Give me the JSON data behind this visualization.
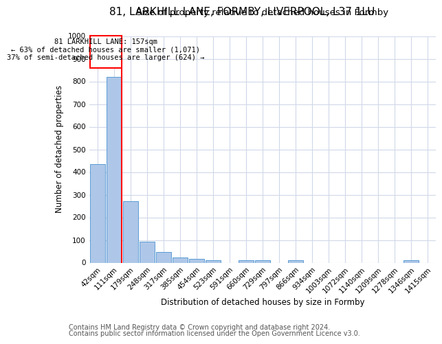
{
  "title1": "81, LARKHILL LANE, FORMBY, LIVERPOOL, L37 1LU",
  "title2": "Size of property relative to detached houses in Formby",
  "xlabel": "Distribution of detached houses by size in Formby",
  "ylabel": "Number of detached properties",
  "bin_labels": [
    "42sqm",
    "111sqm",
    "179sqm",
    "248sqm",
    "317sqm",
    "385sqm",
    "454sqm",
    "523sqm",
    "591sqm",
    "660sqm",
    "729sqm",
    "797sqm",
    "866sqm",
    "934sqm",
    "1003sqm",
    "1072sqm",
    "1140sqm",
    "1209sqm",
    "1278sqm",
    "1346sqm",
    "1415sqm"
  ],
  "bar_heights": [
    435,
    820,
    270,
    93,
    46,
    22,
    16,
    12,
    0,
    11,
    11,
    0,
    11,
    0,
    0,
    0,
    0,
    0,
    0,
    11,
    0
  ],
  "bar_color": "#aec7e8",
  "bar_edge_color": "#5b9bd5",
  "ylim": [
    0,
    1000
  ],
  "yticks": [
    0,
    100,
    200,
    300,
    400,
    500,
    600,
    700,
    800,
    900,
    1000
  ],
  "annotation_line1": "81 LARKHILL LANE: 157sqm",
  "annotation_line2": "← 63% of detached houses are smaller (1,071)",
  "annotation_line3": "37% of semi-detached houses are larger (624) →",
  "footer1": "Contains HM Land Registry data © Crown copyright and database right 2024.",
  "footer2": "Contains public sector information licensed under the Open Government Licence v3.0.",
  "background_color": "#ffffff",
  "grid_color": "#d0d8e8",
  "title1_fontsize": 11,
  "title2_fontsize": 9.5,
  "xlabel_fontsize": 8.5,
  "ylabel_fontsize": 8.5,
  "tick_fontsize": 7.5,
  "footer_fontsize": 7,
  "ann_fontsize": 7.5
}
